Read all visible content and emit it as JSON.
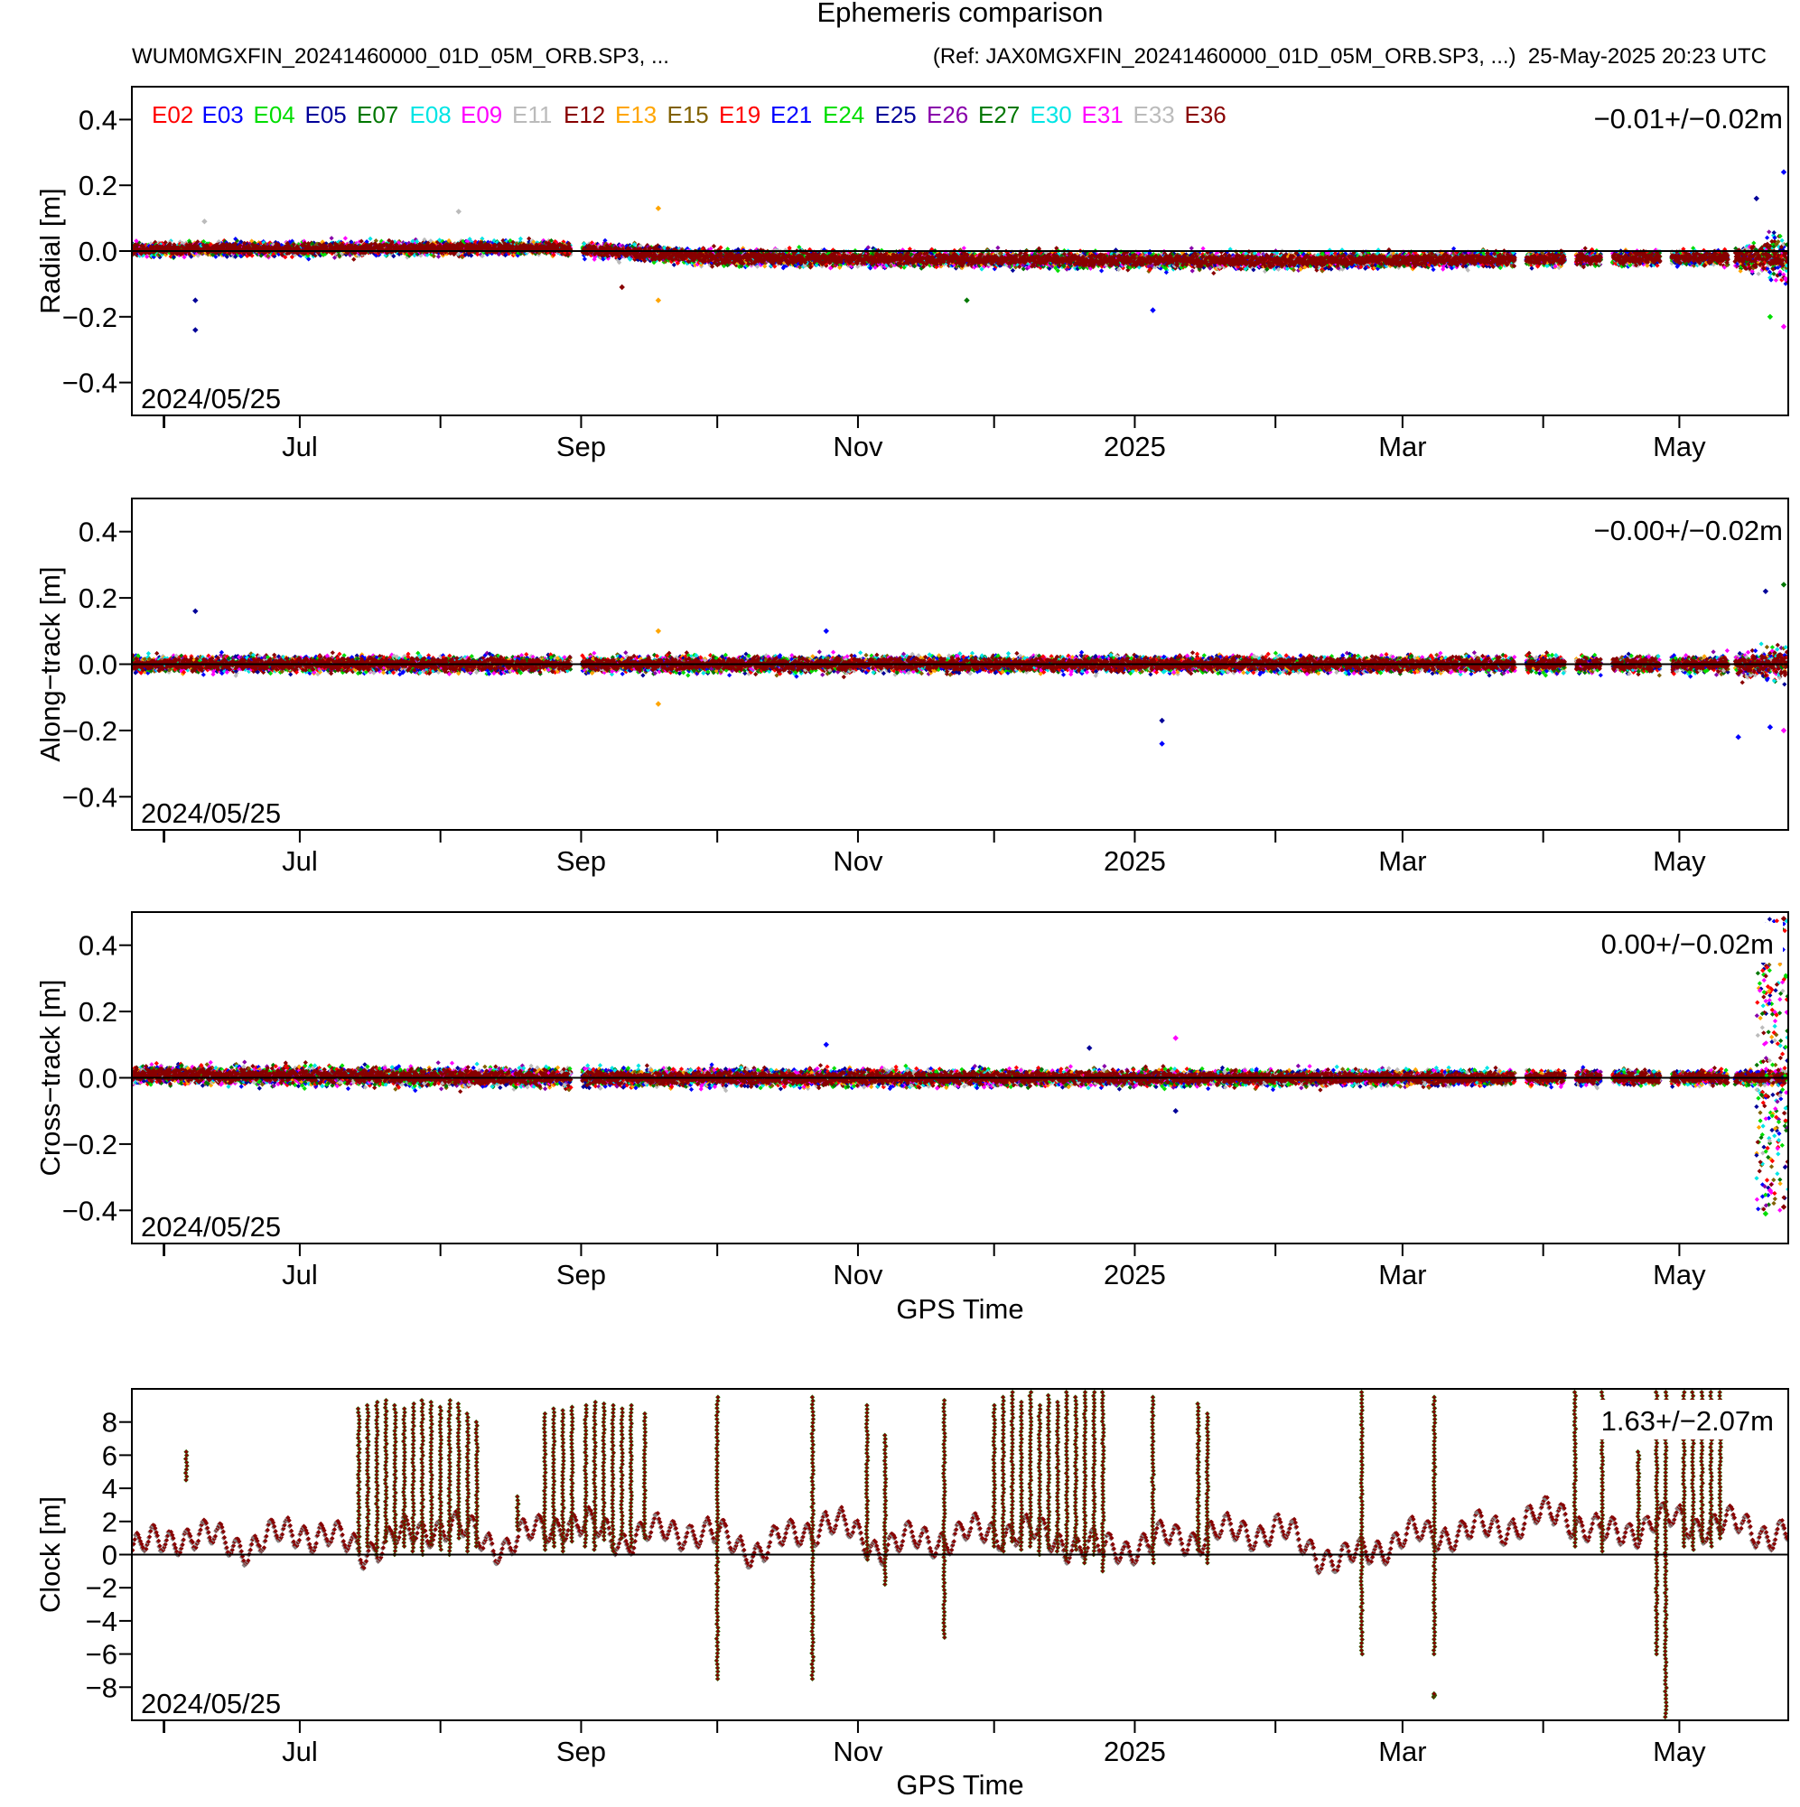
{
  "header": {
    "title": "Ephemeris comparison",
    "subtitle_left": "WUM0MGXFIN_20241460000_01D_05M_ORB.SP3, ...",
    "subtitle_right": "(Ref: JAX0MGXFIN_20241460000_01D_05M_ORB.SP3, ...)  25-May-2025 20:23 UTC"
  },
  "legend": {
    "items": [
      {
        "label": "E02",
        "color": "#ff0000"
      },
      {
        "label": "E03",
        "color": "#0000ff"
      },
      {
        "label": "E04",
        "color": "#00dd00"
      },
      {
        "label": "E05",
        "color": "#000099"
      },
      {
        "label": "E07",
        "color": "#007700"
      },
      {
        "label": "E08",
        "color": "#00e5e5"
      },
      {
        "label": "E09",
        "color": "#ff00ff"
      },
      {
        "label": "E11",
        "color": "#bbbbbb"
      },
      {
        "label": "E12",
        "color": "#880000"
      },
      {
        "label": "E13",
        "color": "#ffa500"
      },
      {
        "label": "E15",
        "color": "#806000"
      },
      {
        "label": "E19",
        "color": "#ff0000"
      },
      {
        "label": "E21",
        "color": "#0000ff"
      },
      {
        "label": "E24",
        "color": "#00dd00"
      },
      {
        "label": "E25",
        "color": "#000099"
      },
      {
        "label": "E26",
        "color": "#8800aa"
      },
      {
        "label": "E27",
        "color": "#007700"
      },
      {
        "label": "E30",
        "color": "#00e5e5"
      },
      {
        "label": "E31",
        "color": "#ff00ff"
      },
      {
        "label": "E33",
        "color": "#bbbbbb"
      },
      {
        "label": "E36",
        "color": "#880000"
      }
    ]
  },
  "x_axis": {
    "range": [
      "2024-05-25",
      "2025-05-25"
    ],
    "ticks": [
      {
        "date": "2024-07-01",
        "label": "Jul"
      },
      {
        "date": "2024-09-01",
        "label": "Sep"
      },
      {
        "date": "2024-11-01",
        "label": "Nov"
      },
      {
        "date": "2025-01-01",
        "label": "2025"
      },
      {
        "date": "2025-03-01",
        "label": "Mar"
      },
      {
        "date": "2025-05-01",
        "label": "May"
      }
    ],
    "minor_ticks": [
      "2024-06-01",
      "2024-08-01",
      "2024-10-01",
      "2024-12-01",
      "2025-02-01",
      "2025-04-01"
    ],
    "xlabel": "GPS Time"
  },
  "chart_data": [
    {
      "type": "scatter",
      "ylabel": "Radial [m]",
      "start_label": "2024/05/25",
      "stat": "−0.01+/−0.02m",
      "ylim": [
        -0.5,
        0.5
      ],
      "yticks": [
        0.4,
        0.2,
        0.0,
        -0.2,
        -0.4
      ],
      "ytick_labels": [
        "0.4",
        "0.2",
        "0.0",
        "−0.2",
        "−0.4"
      ],
      "band": [
        {
          "date": "2024-05-25",
          "mean": 0.005,
          "spread": 0.03
        },
        {
          "date": "2024-08-25",
          "mean": 0.01,
          "spread": 0.03
        },
        {
          "date": "2024-10-01",
          "mean": -0.02,
          "spread": 0.035
        },
        {
          "date": "2025-02-01",
          "mean": -0.03,
          "spread": 0.035
        },
        {
          "date": "2025-05-10",
          "mean": -0.02,
          "spread": 0.03
        },
        {
          "date": "2025-05-25",
          "mean": -0.02,
          "spread": 0.1
        }
      ],
      "outliers": [
        {
          "date": "2024-06-08",
          "value": -0.24,
          "series": "E05"
        },
        {
          "date": "2024-06-08",
          "value": -0.15,
          "series": "E05"
        },
        {
          "date": "2024-06-10",
          "value": 0.09,
          "series": "E11"
        },
        {
          "date": "2024-08-05",
          "value": 0.12,
          "series": "E33"
        },
        {
          "date": "2024-09-18",
          "value": 0.13,
          "series": "E13"
        },
        {
          "date": "2024-09-18",
          "value": -0.15,
          "series": "E13"
        },
        {
          "date": "2024-09-10",
          "value": -0.11,
          "series": "E12"
        },
        {
          "date": "2024-11-25",
          "value": -0.15,
          "series": "E07"
        },
        {
          "date": "2025-01-05",
          "value": -0.18,
          "series": "E03"
        },
        {
          "date": "2025-05-18",
          "value": 0.16,
          "series": "E25"
        },
        {
          "date": "2025-05-24",
          "value": 0.24,
          "series": "E03"
        },
        {
          "date": "2025-05-24",
          "value": -0.23,
          "series": "E09"
        },
        {
          "date": "2025-05-21",
          "value": -0.2,
          "series": "E04"
        }
      ]
    },
    {
      "type": "scatter",
      "ylabel": "Along−track [m]",
      "start_label": "2024/05/25",
      "stat": "−0.00+/−0.02m",
      "ylim": [
        -0.5,
        0.5
      ],
      "yticks": [
        0.4,
        0.2,
        0.0,
        -0.2,
        -0.4
      ],
      "ytick_labels": [
        "0.4",
        "0.2",
        "0.0",
        "−0.2",
        "−0.4"
      ],
      "band": [
        {
          "date": "2024-05-25",
          "mean": 0.0,
          "spread": 0.035
        },
        {
          "date": "2025-05-10",
          "mean": 0.0,
          "spread": 0.035
        },
        {
          "date": "2025-05-25",
          "mean": 0.0,
          "spread": 0.08
        }
      ],
      "outliers": [
        {
          "date": "2024-06-08",
          "value": 0.16,
          "series": "E05"
        },
        {
          "date": "2024-09-18",
          "value": 0.1,
          "series": "E13"
        },
        {
          "date": "2024-09-18",
          "value": -0.12,
          "series": "E13"
        },
        {
          "date": "2024-10-25",
          "value": 0.1,
          "series": "E03"
        },
        {
          "date": "2025-01-07",
          "value": -0.24,
          "series": "E03"
        },
        {
          "date": "2025-01-07",
          "value": -0.17,
          "series": "E05"
        },
        {
          "date": "2025-05-14",
          "value": -0.22,
          "series": "E03"
        },
        {
          "date": "2025-05-20",
          "value": 0.22,
          "series": "E25"
        },
        {
          "date": "2025-05-21",
          "value": -0.19,
          "series": "E03"
        },
        {
          "date": "2025-05-24",
          "value": 0.24,
          "series": "E07"
        },
        {
          "date": "2025-05-24",
          "value": -0.2,
          "series": "E09"
        }
      ]
    },
    {
      "type": "scatter",
      "ylabel": "Cross−track [m]",
      "start_label": "2024/05/25",
      "stat": "0.00+/−0.02m",
      "ylim": [
        -0.5,
        0.5
      ],
      "yticks": [
        0.4,
        0.2,
        0.0,
        -0.2,
        -0.4
      ],
      "ytick_labels": [
        "0.4",
        "0.2",
        "0.0",
        "−0.2",
        "−0.4"
      ],
      "band": [
        {
          "date": "2024-05-25",
          "mean": 0.01,
          "spread": 0.04
        },
        {
          "date": "2024-09-01",
          "mean": 0.0,
          "spread": 0.04
        },
        {
          "date": "2025-05-10",
          "mean": 0.0,
          "spread": 0.03
        },
        {
          "date": "2025-05-25",
          "mean": 0.0,
          "spread": 0.03
        }
      ],
      "outliers": [
        {
          "date": "2024-10-25",
          "value": 0.1,
          "series": "E03"
        },
        {
          "date": "2024-12-22",
          "value": 0.09,
          "series": "E05"
        },
        {
          "date": "2025-01-10",
          "value": 0.12,
          "series": "E09"
        },
        {
          "date": "2025-01-10",
          "value": -0.1,
          "series": "E05"
        },
        {
          "date": "2025-05-20",
          "value": 0.46,
          "series": "E03"
        },
        {
          "date": "2025-05-20",
          "value": -0.41,
          "series": "E04"
        },
        {
          "date": "2025-05-21",
          "value": 0.38,
          "series": "E12"
        },
        {
          "date": "2025-05-21",
          "value": -0.34,
          "series": "E09"
        },
        {
          "date": "2025-05-24",
          "value": 0.48,
          "series": "E36"
        },
        {
          "date": "2025-05-24",
          "value": -0.39,
          "series": "E12"
        }
      ],
      "burst": {
        "from": "2025-05-18",
        "to": "2025-05-25",
        "min": -0.4,
        "max": 0.48
      }
    },
    {
      "type": "scatter",
      "ylabel": "Clock [m]",
      "start_label": "2024/05/25",
      "stat": "1.63+/−2.07m",
      "ylim": [
        -10,
        10
      ],
      "yticks": [
        8,
        6,
        4,
        2,
        0,
        -2,
        -4,
        -6,
        -8
      ],
      "ytick_labels": [
        "8",
        "6",
        "4",
        "2",
        "0",
        "−2",
        "−4",
        "−6",
        "−8"
      ],
      "baseline": [
        {
          "date": "2024-05-25",
          "value": 0.2
        },
        {
          "date": "2024-06-05",
          "value": 1.2
        },
        {
          "date": "2024-06-20",
          "value": 0.5
        },
        {
          "date": "2024-07-01",
          "value": 1.5
        },
        {
          "date": "2024-07-15",
          "value": 0.3
        },
        {
          "date": "2024-08-01",
          "value": 1.8
        },
        {
          "date": "2024-08-15",
          "value": 0.5
        },
        {
          "date": "2024-08-28",
          "value": 2.0
        },
        {
          "date": "2024-09-10",
          "value": 1.0
        },
        {
          "date": "2024-09-25",
          "value": 1.5
        },
        {
          "date": "2024-10-10",
          "value": 0.2
        },
        {
          "date": "2024-10-25",
          "value": 2.0
        },
        {
          "date": "2024-11-05",
          "value": 0.5
        },
        {
          "date": "2024-11-20",
          "value": 1.0
        },
        {
          "date": "2024-12-05",
          "value": 1.5
        },
        {
          "date": "2024-12-25",
          "value": 0.2
        },
        {
          "date": "2025-01-10",
          "value": 1.0
        },
        {
          "date": "2025-02-01",
          "value": 1.5
        },
        {
          "date": "2025-02-15",
          "value": -0.5
        },
        {
          "date": "2025-03-01",
          "value": 1.0
        },
        {
          "date": "2025-03-20",
          "value": 1.5
        },
        {
          "date": "2025-04-05",
          "value": 2.5
        },
        {
          "date": "2025-04-15",
          "value": 1.0
        },
        {
          "date": "2025-04-25",
          "value": 2.0
        },
        {
          "date": "2025-05-10",
          "value": 1.8
        },
        {
          "date": "2025-05-25",
          "value": 1.2
        }
      ],
      "spikes": [
        {
          "date": "2024-06-06",
          "low": 4.5,
          "high": 6.2
        },
        {
          "date": "2024-07-14",
          "low": 0.2,
          "high": 8.8
        },
        {
          "date": "2024-07-16",
          "low": 0.5,
          "high": 9.0
        },
        {
          "date": "2024-07-18",
          "low": 0.0,
          "high": 9.2
        },
        {
          "date": "2024-07-20",
          "low": 0.8,
          "high": 9.3
        },
        {
          "date": "2024-07-22",
          "low": 0.0,
          "high": 9.0
        },
        {
          "date": "2024-07-24",
          "low": 0.5,
          "high": 8.8
        },
        {
          "date": "2024-07-26",
          "low": 0.2,
          "high": 9.1
        },
        {
          "date": "2024-07-28",
          "low": 0.0,
          "high": 9.3
        },
        {
          "date": "2024-07-30",
          "low": 0.6,
          "high": 9.2
        },
        {
          "date": "2024-08-01",
          "low": 0.3,
          "high": 8.9
        },
        {
          "date": "2024-08-03",
          "low": 0.0,
          "high": 9.3
        },
        {
          "date": "2024-08-05",
          "low": 1.0,
          "high": 9.1
        },
        {
          "date": "2024-08-07",
          "low": 0.2,
          "high": 8.5
        },
        {
          "date": "2024-08-09",
          "low": 0.5,
          "high": 8.0
        },
        {
          "date": "2024-08-18",
          "low": 1.5,
          "high": 3.5
        },
        {
          "date": "2024-08-24",
          "low": 0.3,
          "high": 8.5
        },
        {
          "date": "2024-08-26",
          "low": 0.5,
          "high": 8.8
        },
        {
          "date": "2024-08-28",
          "low": 0.2,
          "high": 8.7
        },
        {
          "date": "2024-08-30",
          "low": 0.8,
          "high": 8.9
        },
        {
          "date": "2024-09-02",
          "low": 0.5,
          "high": 9.0
        },
        {
          "date": "2024-09-04",
          "low": 0.3,
          "high": 9.2
        },
        {
          "date": "2024-09-06",
          "low": 0.9,
          "high": 9.1
        },
        {
          "date": "2024-09-08",
          "low": 0.2,
          "high": 9.0
        },
        {
          "date": "2024-09-10",
          "low": 1.0,
          "high": 8.8
        },
        {
          "date": "2024-09-12",
          "low": 0.5,
          "high": 9.0
        },
        {
          "date": "2024-09-15",
          "low": 1.0,
          "high": 8.5
        },
        {
          "date": "2024-10-01",
          "low": -7.5,
          "high": 9.5
        },
        {
          "date": "2024-10-22",
          "low": -7.5,
          "high": 9.5
        },
        {
          "date": "2024-11-03",
          "low": -0.3,
          "high": 9.0
        },
        {
          "date": "2024-11-07",
          "low": -1.8,
          "high": 7.2
        },
        {
          "date": "2024-11-20",
          "low": -5.0,
          "high": 9.3
        },
        {
          "date": "2024-12-01",
          "low": 0.5,
          "high": 9.0
        },
        {
          "date": "2024-12-03",
          "low": 0.2,
          "high": 9.5
        },
        {
          "date": "2024-12-05",
          "low": 0.8,
          "high": 9.8
        },
        {
          "date": "2024-12-07",
          "low": 0.3,
          "high": 9.2
        },
        {
          "date": "2024-12-09",
          "low": 0.5,
          "high": 9.8
        },
        {
          "date": "2024-12-11",
          "low": 0.0,
          "high": 9.0
        },
        {
          "date": "2024-12-13",
          "low": 0.4,
          "high": 9.6
        },
        {
          "date": "2024-12-15",
          "low": 0.2,
          "high": 9.2
        },
        {
          "date": "2024-12-17",
          "low": -0.2,
          "high": 9.8
        },
        {
          "date": "2024-12-19",
          "low": 0.3,
          "high": 9.5
        },
        {
          "date": "2024-12-21",
          "low": -0.5,
          "high": 9.8
        },
        {
          "date": "2024-12-23",
          "low": 0.0,
          "high": 9.8
        },
        {
          "date": "2024-12-25",
          "low": -1.0,
          "high": 9.8
        },
        {
          "date": "2025-01-05",
          "low": -0.5,
          "high": 9.5
        },
        {
          "date": "2025-01-15",
          "low": 0.3,
          "high": 9.1
        },
        {
          "date": "2025-01-17",
          "low": -0.5,
          "high": 8.5
        },
        {
          "date": "2025-02-20",
          "low": -6.0,
          "high": 9.8
        },
        {
          "date": "2025-03-08",
          "low": -6.0,
          "high": 9.5
        },
        {
          "date": "2025-03-08",
          "low": -8.6,
          "high": -8.4
        },
        {
          "date": "2025-04-08",
          "low": 0.5,
          "high": 9.8
        },
        {
          "date": "2025-04-14",
          "low": 0.2,
          "high": 9.8
        },
        {
          "date": "2025-04-22",
          "low": 1.0,
          "high": 6.2
        },
        {
          "date": "2025-04-26",
          "low": -6.0,
          "high": 9.8
        },
        {
          "date": "2025-04-28",
          "low": -9.8,
          "high": 9.8
        },
        {
          "date": "2025-05-02",
          "low": 0.5,
          "high": 9.8
        },
        {
          "date": "2025-05-04",
          "low": 0.3,
          "high": 9.8
        },
        {
          "date": "2025-05-06",
          "low": 0.8,
          "high": 9.8
        },
        {
          "date": "2025-05-08",
          "low": 0.5,
          "high": 9.8
        },
        {
          "date": "2025-05-10",
          "low": 1.0,
          "high": 9.8
        }
      ]
    }
  ]
}
